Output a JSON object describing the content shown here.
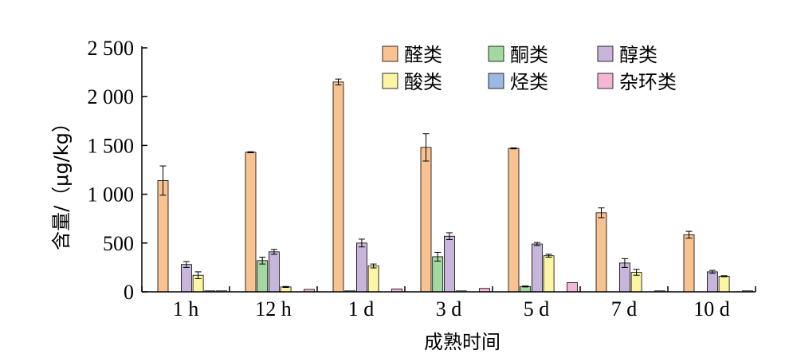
{
  "chart_data": {
    "type": "bar",
    "xlabel": "成熟时间",
    "ylabel": "含量/（μg/kg）",
    "ylim": [
      0,
      2500
    ],
    "yticks": [
      0,
      500,
      1000,
      1500,
      2000,
      2500
    ],
    "ytick_labels": [
      "0",
      "500",
      "1 000",
      "1 500",
      "2 000",
      "2 500"
    ],
    "categories": [
      "1 h",
      "12 h",
      "1 d",
      "3 d",
      "5 d",
      "7 d",
      "10 d"
    ],
    "legend_position": "top-right",
    "series": [
      {
        "name": "醛类",
        "color": "#F9C291",
        "values": [
          1140,
          1430,
          2150,
          1480,
          1470,
          810,
          585
        ],
        "errors": [
          150,
          5,
          30,
          140,
          5,
          50,
          35
        ]
      },
      {
        "name": "酮类",
        "color": "#A3D9A0",
        "values": [
          0,
          320,
          10,
          360,
          55,
          0,
          0
        ],
        "errors": [
          0,
          35,
          0,
          45,
          5,
          0,
          0
        ]
      },
      {
        "name": "醇类",
        "color": "#C7B5DC",
        "values": [
          280,
          410,
          500,
          570,
          490,
          295,
          205
        ],
        "errors": [
          30,
          25,
          40,
          35,
          15,
          45,
          15
        ]
      },
      {
        "name": "酸类",
        "color": "#FBF5A4",
        "values": [
          170,
          50,
          265,
          10,
          370,
          200,
          160
        ],
        "errors": [
          35,
          5,
          20,
          0,
          15,
          30,
          5
        ]
      },
      {
        "name": "烃类",
        "color": "#9DB8E2",
        "values": [
          10,
          0,
          0,
          0,
          0,
          0,
          0
        ],
        "errors": [
          0,
          0,
          0,
          0,
          0,
          0,
          0
        ]
      },
      {
        "name": "杂环类",
        "color": "#F5B6D5",
        "values": [
          10,
          25,
          30,
          35,
          95,
          10,
          10
        ],
        "errors": [
          0,
          0,
          0,
          0,
          0,
          0,
          0
        ]
      }
    ]
  }
}
